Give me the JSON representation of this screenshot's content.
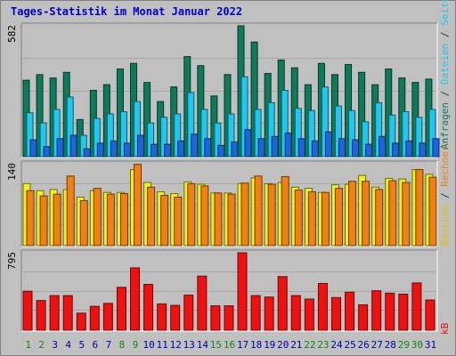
{
  "window": {
    "title": "Tages-Statistik im Monat Januar 2022"
  },
  "colors": {
    "background": "#c0c0c0",
    "panel": "#c0c0c0",
    "anfragen": "#0e7a5a",
    "dateien": "#1ec8f0",
    "seiten": "#1e64e0",
    "besuche": "#f0f020",
    "rechner": "#f08010",
    "kb": "#f01010",
    "title": "#0000cc",
    "weekend_day": "#118811",
    "weekday_day": "#0000aa"
  },
  "right_labels": {
    "top": [
      {
        "text": "Anfragen",
        "color": "#0e7a5a"
      },
      {
        "text": " / ",
        "color": "#333333"
      },
      {
        "text": "Dateien",
        "color": "#1ec8f0"
      },
      {
        "text": " / ",
        "color": "#333333"
      },
      {
        "text": "Seiten",
        "color": "#1ec8f0"
      }
    ],
    "mid": [
      {
        "text": "Besuche",
        "color": "#e0c000"
      },
      {
        "text": " / ",
        "color": "#333333"
      },
      {
        "text": "Rechner",
        "color": "#f08010"
      }
    ],
    "bottom": [
      {
        "text": "kB",
        "color": "#f01010"
      }
    ]
  },
  "chart_data": [
    {
      "type": "bar",
      "title": "Tages-Statistik im Monat Januar 2022",
      "x": [
        1,
        2,
        3,
        4,
        5,
        6,
        7,
        8,
        9,
        10,
        11,
        12,
        13,
        14,
        15,
        16,
        17,
        18,
        19,
        20,
        21,
        22,
        23,
        24,
        25,
        26,
        27,
        28,
        29,
        30,
        31
      ],
      "ylabel": "582",
      "ylim": [
        0,
        582
      ],
      "series": [
        {
          "name": "Anfragen",
          "values": [
            340,
            365,
            350,
            375,
            165,
            295,
            320,
            390,
            415,
            330,
            245,
            310,
            445,
            405,
            270,
            365,
            582,
            510,
            370,
            430,
            395,
            320,
            415,
            365,
            410,
            375,
            320,
            390,
            350,
            330,
            345
          ]
        },
        {
          "name": "Dateien",
          "values": [
            195,
            150,
            210,
            265,
            95,
            170,
            190,
            200,
            245,
            150,
            175,
            190,
            285,
            210,
            150,
            190,
            355,
            210,
            240,
            295,
            215,
            205,
            310,
            225,
            205,
            155,
            240,
            185,
            200,
            175,
            210
          ]
        },
        {
          "name": "Seiten",
          "values": [
            75,
            45,
            80,
            95,
            35,
            60,
            70,
            60,
            95,
            55,
            55,
            70,
            100,
            80,
            50,
            65,
            120,
            80,
            90,
            105,
            80,
            70,
            110,
            80,
            75,
            55,
            90,
            60,
            70,
            60,
            80
          ]
        }
      ]
    },
    {
      "type": "bar",
      "x": [
        1,
        2,
        3,
        4,
        5,
        6,
        7,
        8,
        9,
        10,
        11,
        12,
        13,
        14,
        15,
        16,
        17,
        18,
        19,
        20,
        21,
        22,
        23,
        24,
        25,
        26,
        27,
        28,
        29,
        30,
        31
      ],
      "ylabel": "140",
      "ylim": [
        0,
        140
      ],
      "series": [
        {
          "name": "Besuche",
          "values": [
            106,
            94,
            96,
            96,
            83,
            94,
            91,
            91,
            130,
            108,
            92,
            89,
            109,
            105,
            90,
            90,
            106,
            116,
            106,
            108,
            100,
            98,
            91,
            104,
            105,
            120,
            100,
            115,
            114,
            130,
            122
          ]
        },
        {
          "name": "Rechner",
          "values": [
            94,
            85,
            88,
            119,
            77,
            98,
            88,
            89,
            139,
            100,
            86,
            83,
            106,
            102,
            90,
            88,
            107,
            119,
            105,
            118,
            95,
            92,
            91,
            98,
            110,
            110,
            96,
            111,
            108,
            130,
            117
          ]
        }
      ]
    },
    {
      "type": "bar",
      "x": [
        1,
        2,
        3,
        4,
        5,
        6,
        7,
        8,
        9,
        10,
        11,
        12,
        13,
        14,
        15,
        16,
        17,
        18,
        19,
        20,
        21,
        22,
        23,
        24,
        25,
        26,
        27,
        28,
        29,
        30,
        31
      ],
      "ylabel": "795",
      "ylim": [
        0,
        795
      ],
      "series": [
        {
          "name": "kB",
          "values": [
            400,
            305,
            355,
            355,
            175,
            245,
            275,
            440,
            640,
            470,
            270,
            255,
            360,
            555,
            250,
            250,
            795,
            355,
            340,
            550,
            355,
            320,
            480,
            335,
            390,
            260,
            405,
            380,
            370,
            485,
            310
          ]
        }
      ]
    }
  ],
  "weekend_days": [
    1,
    2,
    8,
    9,
    15,
    16,
    22,
    23,
    29,
    30
  ]
}
